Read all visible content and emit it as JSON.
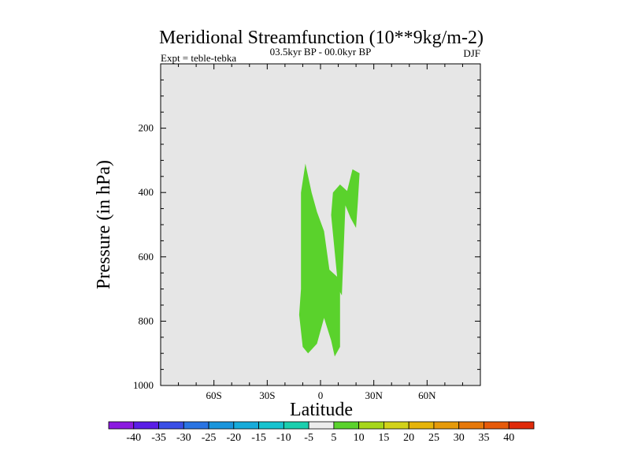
{
  "chart_data": {
    "type": "contour",
    "title": "Meridional Streamfunction (10**9kg/m-2)",
    "subtitle_left": "Expt = teble-tebka",
    "subtitle_center": "03.5kyr BP - 00.0kyr BP",
    "subtitle_right": "DJF",
    "xlabel": "Latitude",
    "ylabel": "Pressure (in hPa)",
    "xlim": [
      -90,
      90
    ],
    "ylim": [
      1000,
      0
    ],
    "x_ticks": [
      {
        "value": -60,
        "label": "60S"
      },
      {
        "value": -30,
        "label": "30S"
      },
      {
        "value": 0,
        "label": "0"
      },
      {
        "value": 30,
        "label": "30N"
      },
      {
        "value": 60,
        "label": "60N"
      }
    ],
    "y_ticks": [
      {
        "value": 200,
        "label": "200"
      },
      {
        "value": 400,
        "label": "400"
      },
      {
        "value": 600,
        "label": "600"
      },
      {
        "value": 800,
        "label": "800"
      },
      {
        "value": 1000,
        "label": "1000"
      }
    ],
    "background_color": "#e6e6e6",
    "contour_regions": [
      {
        "name": "positive-region-main",
        "level_range": "5 to 10",
        "color": "#5ad22c",
        "points": [
          [
            -8.5,
            310
          ],
          [
            -5,
            400
          ],
          [
            -2,
            460
          ],
          [
            2,
            520
          ],
          [
            5,
            640
          ],
          [
            11,
            670
          ],
          [
            11,
            880
          ],
          [
            8,
            910
          ],
          [
            6,
            860
          ],
          [
            2,
            790
          ],
          [
            -2,
            870
          ],
          [
            -7,
            900
          ],
          [
            -10,
            880
          ],
          [
            -12,
            780
          ],
          [
            -11,
            700
          ],
          [
            -11,
            520
          ],
          [
            -11,
            400
          ]
        ]
      },
      {
        "name": "positive-region-secondary",
        "level_range": "5 to 10",
        "color": "#5ad22c",
        "points": [
          [
            11,
            375
          ],
          [
            15,
            395
          ],
          [
            18,
            328
          ],
          [
            22,
            340
          ],
          [
            21,
            430
          ],
          [
            20,
            510
          ],
          [
            17,
            480
          ],
          [
            14,
            440
          ],
          [
            12,
            720
          ],
          [
            10,
            700
          ],
          [
            6,
            470
          ],
          [
            7,
            400
          ]
        ]
      }
    ],
    "colorbar": {
      "labels": [
        "-40",
        "-35",
        "-30",
        "-25",
        "-20",
        "-15",
        "-10",
        "-5",
        "5",
        "10",
        "15",
        "20",
        "25",
        "30",
        "35",
        "40"
      ],
      "colors": [
        "#8b1ae0",
        "#5a1ee6",
        "#3a4ee6",
        "#2a74e2",
        "#1a95dc",
        "#17abd9",
        "#17c3cf",
        "#1acfae",
        "#ececec",
        "#5ad22c",
        "#a6d61a",
        "#d2d21a",
        "#e6b40a",
        "#e69a0a",
        "#e6780a",
        "#e65a0a",
        "#e02a0a"
      ]
    }
  }
}
